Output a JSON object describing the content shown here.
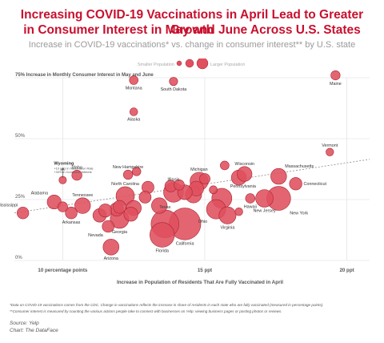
{
  "title_line1": "Increasing COVID-19 Vaccinations in April Lead to Greater Growth",
  "title_line2": "in Consumer Interest in May and June Across U.S. States",
  "subtitle": "Increase in COVID-19 vaccinations* vs. change in consumer interest** by U.S. state",
  "legend": {
    "smaller": "Smaller Population",
    "larger": "Larger Population"
  },
  "footnotes": [
    "*Data on COVID-19 vaccinations comes from the CDC. Change in vaccinations reflects the increase in share of residents in each state who are fully vaccinated (measured in percentage points).",
    "**Consumer interest is measured by counting the various actions people take to connect with businesses on Yelp: viewing business pages or posting photos or reviews."
  ],
  "source": "Source: Yelp",
  "credit": "Chart: The DataFace",
  "colors": {
    "title": "#c8102e",
    "bubble_fill": "#e0505f",
    "bubble_stroke": "#a8232f",
    "trend": "#8a8a8a",
    "grid": "#dddddd"
  },
  "chart_data": {
    "type": "scatter",
    "xlabel": "Increase in Population of Residents That Are Fully Vaccinated in April",
    "ylabel": "75% Increase in Monthly Consumer Interest in May and June",
    "x_ticks": [
      {
        "value": 10,
        "label": "10 percentage points"
      },
      {
        "value": 15,
        "label": "15 ppt"
      },
      {
        "value": 20,
        "label": "20 ppt"
      }
    ],
    "y_ticks": [
      {
        "value": 0,
        "label": "0%"
      },
      {
        "value": 25,
        "label": "25%"
      },
      {
        "value": 50,
        "label": "50%"
      },
      {
        "value": 75,
        "label": ""
      }
    ],
    "xlim": [
      8.3,
      20.8
    ],
    "ylim": [
      0,
      75
    ],
    "trendline": {
      "x": [
        8.3,
        20.8
      ],
      "y": [
        19.5,
        41.5
      ]
    },
    "annotation": {
      "title": "Wyoming",
      "line1": "+10 ppts in Vaccination Rate",
      "line2": "+33% in Consumer Interest",
      "x": 10.0,
      "y": 33
    },
    "points": [
      {
        "state": "Maine",
        "x": 19.6,
        "y": 76,
        "pop": 1.36,
        "label": true,
        "label_pos": "below"
      },
      {
        "state": "Montana",
        "x": 12.5,
        "y": 74,
        "pop": 1.08,
        "label": true,
        "label_pos": "below"
      },
      {
        "state": "South Dakota",
        "x": 13.9,
        "y": 73.5,
        "pop": 0.89,
        "label": true,
        "label_pos": "below"
      },
      {
        "state": "Alaska",
        "x": 12.5,
        "y": 61,
        "pop": 0.73,
        "label": true,
        "label_pos": "below"
      },
      {
        "state": "Wyoming",
        "x": 10.0,
        "y": 33,
        "pop": 0.58,
        "label": false
      },
      {
        "state": "Vermont",
        "x": 19.4,
        "y": 44.5,
        "pop": 0.64,
        "label": true,
        "label_pos": "above"
      },
      {
        "state": "Idaho",
        "x": 10.5,
        "y": 35,
        "pop": 1.84,
        "label": true,
        "label_pos": "above"
      },
      {
        "state": "New Hampshire",
        "x": 12.3,
        "y": 35.2,
        "pop": 1.38,
        "label": true,
        "label_pos": "above"
      },
      {
        "state": "Wisconsin",
        "x": 16.4,
        "y": 35.5,
        "pop": 5.89,
        "label": true,
        "label_pos": "above"
      },
      {
        "state": "Massachusetts",
        "x": 17.6,
        "y": 34.5,
        "pop": 7.03,
        "label": true,
        "label_pos": "aboveright"
      },
      {
        "state": "Michigan",
        "x": 14.8,
        "y": 32.5,
        "pop": 10.08,
        "label": true,
        "label_pos": "above"
      },
      {
        "state": "Connecticut",
        "x": 18.2,
        "y": 31.5,
        "pop": 3.61,
        "label": true,
        "label_pos": "right"
      },
      {
        "state": "Illinois",
        "x": 13.9,
        "y": 28,
        "pop": 12.81,
        "label": true,
        "label_pos": "above"
      },
      {
        "state": "North Carolina",
        "x": 12.2,
        "y": 26.5,
        "pop": 10.44,
        "label": true,
        "label_pos": "above"
      },
      {
        "state": "Pennsylvania",
        "x": 15.6,
        "y": 25.5,
        "pop": 13.0,
        "label": true,
        "label_pos": "aboveright"
      },
      {
        "state": "New York",
        "x": 17.6,
        "y": 25.5,
        "pop": 20.2,
        "label": true,
        "label_pos": "belowright"
      },
      {
        "state": "New Jersey",
        "x": 17.1,
        "y": 25.5,
        "pop": 9.29,
        "label": true,
        "label_pos": "below"
      },
      {
        "state": "Hawaii",
        "x": 16.6,
        "y": 25.5,
        "pop": 1.46,
        "label": true,
        "label_pos": "below"
      },
      {
        "state": "Alabama",
        "x": 9.7,
        "y": 24,
        "pop": 5.02,
        "label": true,
        "label_pos": "aboveleft"
      },
      {
        "state": "Tennessee",
        "x": 10.7,
        "y": 22.5,
        "pop": 6.91,
        "label": true,
        "label_pos": "above"
      },
      {
        "state": "Mississippi",
        "x": 8.6,
        "y": 19.5,
        "pop": 2.96,
        "label": true,
        "label_pos": "aboveleft"
      },
      {
        "state": "Arkansas",
        "x": 10.3,
        "y": 19.5,
        "pop": 3.01,
        "label": true,
        "label_pos": "below"
      },
      {
        "state": "Virginia",
        "x": 15.8,
        "y": 18.5,
        "pop": 8.63,
        "label": true,
        "label_pos": "below"
      },
      {
        "state": "Ohio",
        "x": 15.4,
        "y": 21,
        "pop": 11.8,
        "label": true,
        "label_pos": "belowleft"
      },
      {
        "state": "Texas",
        "x": 13.6,
        "y": 15,
        "pop": 29.1,
        "label": true,
        "label_pos": "above"
      },
      {
        "state": "California",
        "x": 14.3,
        "y": 15,
        "pop": 39.5,
        "label": true,
        "label_pos": "below"
      },
      {
        "state": "Florida",
        "x": 13.5,
        "y": 10.5,
        "pop": 21.5,
        "label": true,
        "label_pos": "below"
      },
      {
        "state": "Georgia",
        "x": 12.0,
        "y": 17,
        "pop": 10.7,
        "label": true,
        "label_pos": "below"
      },
      {
        "state": "Nevada",
        "x": 11.6,
        "y": 14,
        "pop": 3.1,
        "label": true,
        "label_pos": "belowleft"
      },
      {
        "state": "Arizona",
        "x": 11.7,
        "y": 5.5,
        "pop": 7.15,
        "label": true,
        "label_pos": "below"
      },
      {
        "state": "Oregon",
        "x": 11.5,
        "y": 20.5,
        "pop": 4.24,
        "label": false
      },
      {
        "state": "Kentucky",
        "x": 11.3,
        "y": 18.5,
        "pop": 4.51,
        "label": false
      },
      {
        "state": "Missouri",
        "x": 12.5,
        "y": 21.5,
        "pop": 6.15,
        "label": false
      },
      {
        "state": "South Carolina",
        "x": 12.4,
        "y": 19,
        "pop": 5.12,
        "label": false
      },
      {
        "state": "Indiana",
        "x": 13.4,
        "y": 22.5,
        "pop": 6.79,
        "label": false
      },
      {
        "state": "Louisiana",
        "x": 11.9,
        "y": 21,
        "pop": 4.66,
        "label": false
      },
      {
        "state": "Oklahoma",
        "x": 12.0,
        "y": 22,
        "pop": 3.96,
        "label": false
      },
      {
        "state": "Minnesota",
        "x": 14.3,
        "y": 28,
        "pop": 5.71,
        "label": false
      },
      {
        "state": "Colorado",
        "x": 14.7,
        "y": 29.5,
        "pop": 5.77,
        "label": false
      },
      {
        "state": "Washington",
        "x": 14.6,
        "y": 27,
        "pop": 7.71,
        "label": false
      },
      {
        "state": "Maryland",
        "x": 16.2,
        "y": 34,
        "pop": 6.18,
        "label": false
      },
      {
        "state": "Utah",
        "x": 13.0,
        "y": 30,
        "pop": 3.27,
        "label": false
      },
      {
        "state": "Kansas",
        "x": 13.8,
        "y": 30.5,
        "pop": 2.94,
        "label": false
      },
      {
        "state": "Iowa",
        "x": 12.9,
        "y": 26,
        "pop": 3.19,
        "label": false
      },
      {
        "state": "Nebraska",
        "x": 14.1,
        "y": 31,
        "pop": 1.96,
        "label": false
      },
      {
        "state": "West Virginia",
        "x": 10.0,
        "y": 22,
        "pop": 1.79,
        "label": false
      },
      {
        "state": "New Mexico",
        "x": 15.0,
        "y": 33.5,
        "pop": 2.12,
        "label": false
      },
      {
        "state": "Rhode Island",
        "x": 15.7,
        "y": 39,
        "pop": 1.1,
        "label": false
      },
      {
        "state": "Delaware",
        "x": 12.6,
        "y": 36.5,
        "pop": 0.99,
        "label": false
      },
      {
        "state": "North Dakota",
        "x": 15.3,
        "y": 29,
        "pop": 0.78,
        "label": false
      },
      {
        "state": "Washington DC",
        "x": 16.2,
        "y": 20,
        "pop": 0.69,
        "label": false
      }
    ]
  }
}
